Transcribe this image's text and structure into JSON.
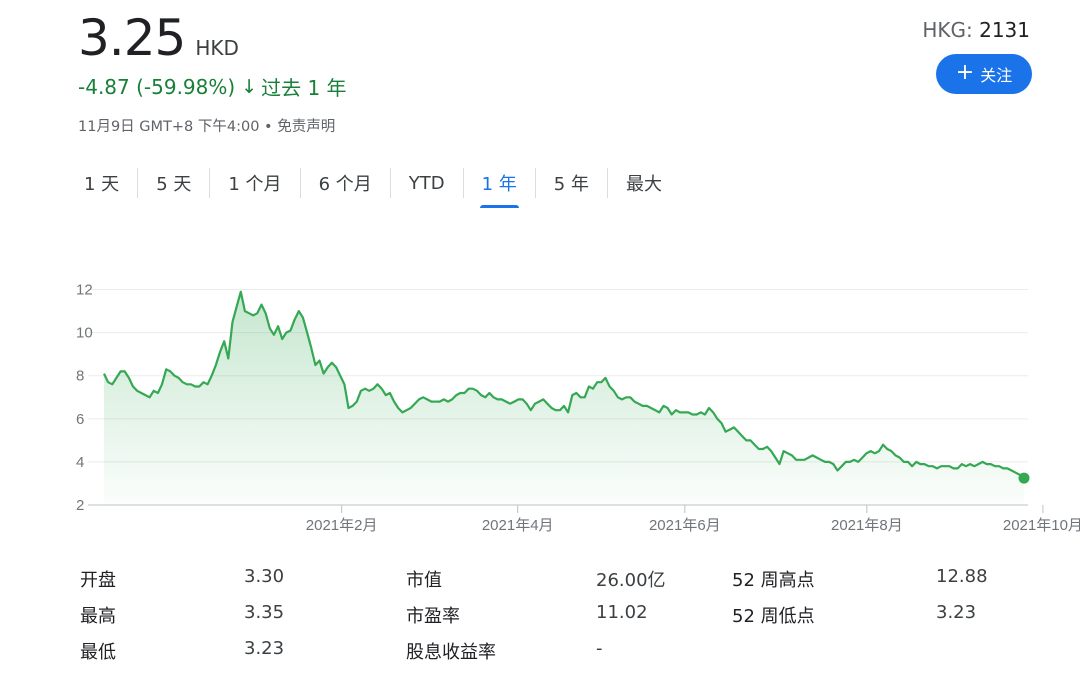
{
  "quote": {
    "price": "3.25",
    "currency": "HKD",
    "change": "-4.87 (-59.98%)",
    "arrow": "↓",
    "period": "过去 1 年",
    "timestamp": "11月9日 GMT+8 下午4:00 • 免责声明",
    "ticker_label": "HKG:",
    "ticker_code": "2131"
  },
  "follow_button": {
    "icon": "+",
    "label": "关注"
  },
  "ranges": [
    "1 天",
    "5 天",
    "1 个月",
    "6 个月",
    "YTD",
    "1 年",
    "5 年",
    "最大"
  ],
  "active_range": "1 年",
  "colors": {
    "line": "#34a853",
    "fill_top": "#34a853",
    "positive_text": "#188038",
    "accent": "#1a73e8"
  },
  "chart_data": {
    "type": "area",
    "y_ticks": [
      "12",
      "10",
      "8",
      "6",
      "4",
      "2"
    ],
    "ylim": [
      2,
      13
    ],
    "x_ticks": [
      "2021年2月",
      "2021年4月",
      "2021年6月",
      "2021年8月",
      "2021年10月"
    ],
    "x_tick_days": [
      85,
      144,
      200,
      261,
      320
    ],
    "x_days_range": [
      0,
      315
    ],
    "grid": true,
    "series": [
      {
        "values": [
          [
            0,
            8.1
          ],
          [
            1,
            7.7
          ],
          [
            2,
            7.6
          ],
          [
            3,
            7.9
          ],
          [
            4,
            8.2
          ],
          [
            5,
            8.2
          ],
          [
            6,
            7.9
          ],
          [
            7,
            7.5
          ],
          [
            8,
            7.3
          ],
          [
            9,
            7.2
          ],
          [
            10,
            7.1
          ],
          [
            11,
            7.0
          ],
          [
            12,
            7.3
          ],
          [
            13,
            7.2
          ],
          [
            14,
            7.6
          ],
          [
            15,
            8.3
          ],
          [
            16,
            8.2
          ],
          [
            17,
            8.0
          ],
          [
            18,
            7.9
          ],
          [
            19,
            7.7
          ],
          [
            20,
            7.6
          ],
          [
            21,
            7.6
          ],
          [
            22,
            7.5
          ],
          [
            23,
            7.5
          ],
          [
            24,
            7.7
          ],
          [
            25,
            7.6
          ],
          [
            26,
            8.0
          ],
          [
            27,
            8.5
          ],
          [
            28,
            9.1
          ],
          [
            29,
            9.6
          ],
          [
            30,
            8.8
          ],
          [
            31,
            10.5
          ],
          [
            32,
            11.2
          ],
          [
            33,
            11.9
          ],
          [
            34,
            11.0
          ],
          [
            35,
            10.9
          ],
          [
            36,
            10.8
          ],
          [
            37,
            10.9
          ],
          [
            38,
            11.3
          ],
          [
            39,
            10.9
          ],
          [
            40,
            10.2
          ],
          [
            41,
            9.9
          ],
          [
            42,
            10.3
          ],
          [
            43,
            9.7
          ],
          [
            44,
            10.0
          ],
          [
            45,
            10.1
          ],
          [
            46,
            10.6
          ],
          [
            47,
            11.0
          ],
          [
            48,
            10.7
          ],
          [
            49,
            10.0
          ],
          [
            50,
            9.3
          ],
          [
            51,
            8.5
          ],
          [
            52,
            8.7
          ],
          [
            53,
            8.1
          ],
          [
            54,
            8.4
          ],
          [
            55,
            8.6
          ],
          [
            56,
            8.4
          ],
          [
            57,
            8.0
          ],
          [
            58,
            7.6
          ],
          [
            59,
            6.5
          ],
          [
            60,
            6.6
          ],
          [
            61,
            6.8
          ],
          [
            62,
            7.3
          ],
          [
            63,
            7.4
          ],
          [
            64,
            7.3
          ],
          [
            65,
            7.4
          ],
          [
            66,
            7.6
          ],
          [
            67,
            7.4
          ],
          [
            68,
            7.1
          ],
          [
            69,
            7.2
          ],
          [
            70,
            6.8
          ],
          [
            71,
            6.5
          ],
          [
            72,
            6.3
          ],
          [
            73,
            6.4
          ],
          [
            74,
            6.5
          ],
          [
            75,
            6.7
          ],
          [
            76,
            6.9
          ],
          [
            77,
            7.0
          ],
          [
            78,
            6.9
          ],
          [
            79,
            6.8
          ],
          [
            80,
            6.8
          ],
          [
            81,
            6.8
          ],
          [
            82,
            6.9
          ],
          [
            83,
            6.8
          ],
          [
            84,
            6.9
          ],
          [
            85,
            7.1
          ],
          [
            86,
            7.2
          ],
          [
            87,
            7.2
          ],
          [
            88,
            7.4
          ],
          [
            89,
            7.4
          ],
          [
            90,
            7.3
          ],
          [
            91,
            7.1
          ],
          [
            92,
            7.0
          ],
          [
            93,
            7.2
          ],
          [
            94,
            7.0
          ],
          [
            95,
            6.9
          ],
          [
            96,
            6.9
          ],
          [
            97,
            6.8
          ],
          [
            98,
            6.7
          ],
          [
            99,
            6.8
          ],
          [
            100,
            6.9
          ],
          [
            101,
            6.9
          ],
          [
            102,
            6.7
          ],
          [
            103,
            6.4
          ],
          [
            104,
            6.7
          ],
          [
            105,
            6.8
          ],
          [
            106,
            6.9
          ],
          [
            107,
            6.7
          ],
          [
            108,
            6.5
          ],
          [
            109,
            6.4
          ],
          [
            110,
            6.4
          ],
          [
            111,
            6.6
          ],
          [
            112,
            6.3
          ],
          [
            113,
            7.1
          ],
          [
            114,
            7.2
          ],
          [
            115,
            7.0
          ],
          [
            116,
            7.0
          ],
          [
            117,
            7.5
          ],
          [
            118,
            7.4
          ],
          [
            119,
            7.7
          ],
          [
            120,
            7.7
          ],
          [
            121,
            7.9
          ],
          [
            122,
            7.5
          ],
          [
            123,
            7.3
          ],
          [
            124,
            7.0
          ],
          [
            125,
            6.9
          ],
          [
            126,
            7.0
          ],
          [
            127,
            7.0
          ],
          [
            128,
            6.8
          ],
          [
            129,
            6.7
          ],
          [
            130,
            6.6
          ],
          [
            131,
            6.6
          ],
          [
            132,
            6.5
          ],
          [
            133,
            6.4
          ],
          [
            134,
            6.3
          ],
          [
            135,
            6.6
          ],
          [
            136,
            6.5
          ],
          [
            137,
            6.2
          ],
          [
            138,
            6.4
          ],
          [
            139,
            6.3
          ],
          [
            140,
            6.3
          ],
          [
            141,
            6.3
          ],
          [
            142,
            6.2
          ],
          [
            143,
            6.2
          ],
          [
            144,
            6.3
          ],
          [
            145,
            6.2
          ],
          [
            146,
            6.5
          ],
          [
            147,
            6.3
          ],
          [
            148,
            6.0
          ],
          [
            149,
            5.8
          ],
          [
            150,
            5.4
          ],
          [
            151,
            5.5
          ],
          [
            152,
            5.6
          ],
          [
            153,
            5.4
          ],
          [
            154,
            5.2
          ],
          [
            155,
            5.0
          ],
          [
            156,
            5.0
          ],
          [
            157,
            4.8
          ],
          [
            158,
            4.6
          ],
          [
            159,
            4.6
          ],
          [
            160,
            4.7
          ],
          [
            161,
            4.5
          ],
          [
            162,
            4.2
          ],
          [
            163,
            3.9
          ],
          [
            164,
            4.5
          ],
          [
            165,
            4.4
          ],
          [
            166,
            4.3
          ],
          [
            167,
            4.1
          ],
          [
            168,
            4.1
          ],
          [
            169,
            4.1
          ],
          [
            170,
            4.2
          ],
          [
            171,
            4.3
          ],
          [
            172,
            4.2
          ],
          [
            173,
            4.1
          ],
          [
            174,
            4.0
          ],
          [
            175,
            4.0
          ],
          [
            176,
            3.9
          ],
          [
            177,
            3.6
          ],
          [
            178,
            3.8
          ],
          [
            179,
            4.0
          ],
          [
            180,
            4.0
          ],
          [
            181,
            4.1
          ],
          [
            182,
            4.0
          ],
          [
            183,
            4.2
          ],
          [
            184,
            4.4
          ],
          [
            185,
            4.5
          ],
          [
            186,
            4.4
          ],
          [
            187,
            4.5
          ],
          [
            188,
            4.8
          ],
          [
            189,
            4.6
          ],
          [
            190,
            4.5
          ],
          [
            191,
            4.3
          ],
          [
            192,
            4.2
          ],
          [
            193,
            4.0
          ],
          [
            194,
            4.0
          ],
          [
            195,
            3.8
          ],
          [
            196,
            4.0
          ],
          [
            197,
            3.9
          ],
          [
            198,
            3.9
          ],
          [
            199,
            3.8
          ],
          [
            200,
            3.8
          ],
          [
            201,
            3.7
          ],
          [
            202,
            3.8
          ],
          [
            203,
            3.8
          ],
          [
            204,
            3.8
          ],
          [
            205,
            3.7
          ],
          [
            206,
            3.7
          ],
          [
            207,
            3.9
          ],
          [
            208,
            3.8
          ],
          [
            209,
            3.9
          ],
          [
            210,
            3.8
          ],
          [
            211,
            3.9
          ],
          [
            212,
            4.0
          ],
          [
            213,
            3.9
          ],
          [
            214,
            3.9
          ],
          [
            215,
            3.8
          ],
          [
            216,
            3.8
          ],
          [
            217,
            3.7
          ],
          [
            218,
            3.7
          ],
          [
            219,
            3.6
          ],
          [
            220,
            3.5
          ],
          [
            221,
            3.4
          ],
          [
            222,
            3.25
          ]
        ]
      }
    ]
  },
  "stats": {
    "col1": [
      {
        "label": "开盘",
        "value": "3.30"
      },
      {
        "label": "最高",
        "value": "3.35"
      },
      {
        "label": "最低",
        "value": "3.23"
      }
    ],
    "col2": [
      {
        "label": "市值",
        "value": "26.00亿"
      },
      {
        "label": "市盈率",
        "value": "11.02"
      },
      {
        "label": "股息收益率",
        "value": "-"
      }
    ],
    "col3": [
      {
        "label": "52 周高点",
        "value": "12.88"
      },
      {
        "label": "52 周低点",
        "value": "3.23"
      }
    ]
  }
}
